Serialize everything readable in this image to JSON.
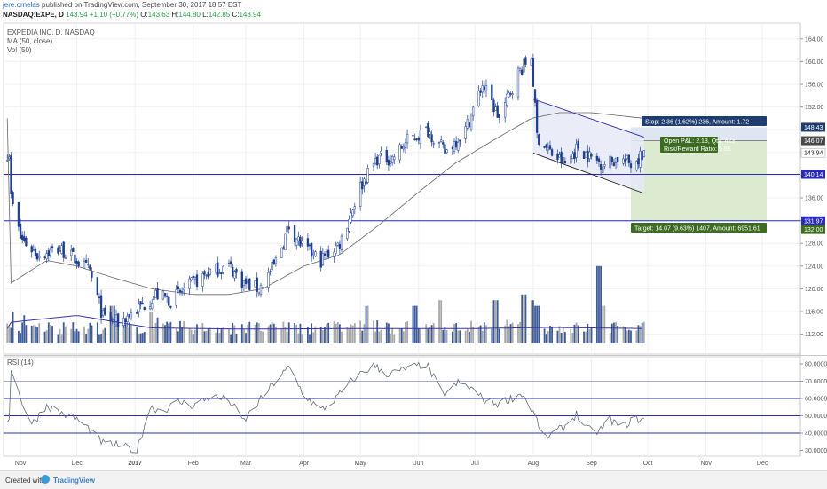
{
  "header": {
    "author": "jere.ornelas",
    "published_text": "published on TradingView.com, September 30, 2017 18:57 EST",
    "symbol": "NASDAQ:EXPE, D",
    "last": "143.94",
    "change": "+1.10 (+0.77%)",
    "o_label": "O:",
    "o_value": "143.63",
    "h_label": "H:",
    "h_value": "144.80",
    "l_label": "L:",
    "l_value": "142.85",
    "c_label": "C:",
    "c_value": "143.94"
  },
  "legend": {
    "title": "EXPEDIA INC, D, NASDAQ",
    "ma": "MA (50, close)",
    "vol": "Vol (50)",
    "rsi": "RSI (14)"
  },
  "footer": {
    "created": "Created with",
    "brand": "TradingView"
  },
  "chart_data": [
    {
      "type": "candlestick",
      "title": "EXPEDIA INC, D, NASDAQ",
      "ylim": [
        110,
        166
      ],
      "y_ticks": [
        "164.00",
        "160.00",
        "156.00",
        "152.00",
        "148.00",
        "144.00",
        "140.00",
        "136.00",
        "132.00",
        "128.00",
        "124.00",
        "120.00",
        "116.00",
        "112.00"
      ],
      "x_ticks": [
        "Nov",
        "Dec",
        "2017",
        "Feb",
        "Mar",
        "Apr",
        "May",
        "Jun",
        "Jul",
        "Aug",
        "Sep",
        "Oct",
        "Nov",
        "Dec"
      ],
      "price_path": [
        [
          "2016-10-27",
          136
        ],
        [
          "2016-11-01",
          129
        ],
        [
          "2016-11-10",
          126
        ],
        [
          "2016-11-22",
          127
        ],
        [
          "2016-12-01",
          125
        ],
        [
          "2016-12-08",
          123
        ],
        [
          "2016-12-15",
          115
        ],
        [
          "2016-12-23",
          114
        ],
        [
          "2017-01-05",
          117
        ],
        [
          "2017-01-12",
          119
        ],
        [
          "2017-01-20",
          118
        ],
        [
          "2017-02-01",
          121
        ],
        [
          "2017-02-10",
          123
        ],
        [
          "2017-02-20",
          124
        ],
        [
          "2017-02-28",
          121
        ],
        [
          "2017-03-08",
          120
        ],
        [
          "2017-03-16",
          124
        ],
        [
          "2017-03-24",
          131
        ],
        [
          "2017-04-01",
          127
        ],
        [
          "2017-04-10",
          125
        ],
        [
          "2017-04-20",
          128
        ],
        [
          "2017-05-01",
          138
        ],
        [
          "2017-05-10",
          143
        ],
        [
          "2017-05-18",
          143
        ],
        [
          "2017-05-26",
          146
        ],
        [
          "2017-06-06",
          148
        ],
        [
          "2017-06-15",
          144
        ],
        [
          "2017-06-26",
          148
        ],
        [
          "2017-07-05",
          156
        ],
        [
          "2017-07-14",
          150
        ],
        [
          "2017-07-24",
          158
        ],
        [
          "2017-07-31",
          161
        ],
        [
          "2017-08-03",
          147
        ],
        [
          "2017-08-10",
          144
        ],
        [
          "2017-08-18",
          142
        ],
        [
          "2017-08-25",
          145
        ],
        [
          "2017-09-01",
          143
        ],
        [
          "2017-09-08",
          142
        ],
        [
          "2017-09-15",
          143
        ],
        [
          "2017-09-22",
          142
        ],
        [
          "2017-09-29",
          143.94
        ]
      ],
      "ma50_path": [
        [
          "2016-10-27",
          121
        ],
        [
          "2016-11-15",
          125
        ],
        [
          "2016-12-01",
          124
        ],
        [
          "2016-12-20",
          122
        ],
        [
          "2017-01-10",
          120
        ],
        [
          "2017-02-01",
          119
        ],
        [
          "2017-02-20",
          119
        ],
        [
          "2017-03-10",
          120
        ],
        [
          "2017-04-01",
          124
        ],
        [
          "2017-04-20",
          126
        ],
        [
          "2017-05-10",
          131
        ],
        [
          "2017-06-01",
          137
        ],
        [
          "2017-06-20",
          142
        ],
        [
          "2017-07-10",
          146
        ],
        [
          "2017-07-31",
          150
        ],
        [
          "2017-08-15",
          151
        ],
        [
          "2017-09-01",
          151
        ],
        [
          "2017-09-29",
          150
        ]
      ],
      "volume_ma": [
        [
          "2016-10-27",
          114.1
        ],
        [
          "2016-12-01",
          115.3
        ],
        [
          "2017-01-10",
          113.1
        ],
        [
          "2017-03-01",
          112.9
        ],
        [
          "2017-05-01",
          113.0
        ],
        [
          "2017-07-01",
          113.0
        ],
        [
          "2017-08-10",
          113.2
        ],
        [
          "2017-09-29",
          113.0
        ]
      ],
      "volume_peaks": [
        [
          "2016-10-29",
          116
        ],
        [
          "2016-12-20",
          117
        ],
        [
          "2017-01-09",
          116
        ],
        [
          "2017-05-05",
          117
        ],
        [
          "2017-05-30",
          117
        ],
        [
          "2017-06-12",
          118
        ],
        [
          "2017-07-12",
          118
        ],
        [
          "2017-07-27",
          119
        ],
        [
          "2017-08-01",
          118
        ],
        [
          "2017-08-03",
          117
        ],
        [
          "2017-09-05",
          124
        ],
        [
          "2017-09-08",
          117
        ]
      ],
      "horizontal_lines": [
        140.14,
        131.97
      ],
      "channel": {
        "upper": [
          [
            "2017-08-01",
            153.4
          ],
          [
            "2017-09-29",
            146.7
          ]
        ],
        "lower": [
          [
            "2017-08-01",
            143.9
          ],
          [
            "2017-09-29",
            136.8
          ]
        ]
      },
      "position": {
        "entry": 146.07,
        "stop": 148.43,
        "target": 132.0,
        "stop_label": "Stop: 2.36 (1.62%) 236, Amount: 1.72",
        "open_label": "Open P&L: 2.13, Qty: 423",
        "rr_label": "Risk/Reward Ratio: 5.96",
        "target_label": "Target: 14.07 (9.63%) 1407, Amount: 6951.61"
      },
      "price_labels": [
        "148.43",
        "146.07",
        "143.94",
        "140.14",
        "131.97",
        "132.00"
      ],
      "colors": {
        "candle_up": "#ffffff",
        "candle_down": "#1e3f8f",
        "outline": "#1e3f8f",
        "volume_up": "#a9a9a9",
        "volume_down": "#3d5b96",
        "ma": "#666666",
        "volume_ma": "#3a2fb0",
        "level_line": "#2b2bb8",
        "stop_zone": "#dde6f2",
        "target_zone": "#dcebd0",
        "stop_box": "#1f3d6e",
        "target_box": "#3d6b22",
        "last_price_box": "#4a4a4a"
      }
    },
    {
      "type": "line",
      "title": "RSI (14)",
      "ylim": [
        25,
        82
      ],
      "y_ticks": [
        "80.0000",
        "70.0000",
        "60.0000",
        "50.0000",
        "40.0000",
        "30.0000"
      ],
      "levels": [
        70,
        60,
        50,
        40
      ],
      "rsi_path": [
        [
          "2016-10-27",
          78
        ],
        [
          "2016-11-01",
          60
        ],
        [
          "2016-11-07",
          45
        ],
        [
          "2016-11-15",
          56
        ],
        [
          "2016-11-22",
          52
        ],
        [
          "2016-12-01",
          48
        ],
        [
          "2016-12-08",
          42
        ],
        [
          "2016-12-15",
          34
        ],
        [
          "2016-12-23",
          33
        ],
        [
          "2017-01-02",
          30
        ],
        [
          "2017-01-09",
          55
        ],
        [
          "2017-01-16",
          53
        ],
        [
          "2017-01-24",
          58
        ],
        [
          "2017-02-01",
          56
        ],
        [
          "2017-02-10",
          61
        ],
        [
          "2017-02-20",
          59
        ],
        [
          "2017-02-28",
          47
        ],
        [
          "2017-03-08",
          58
        ],
        [
          "2017-03-16",
          69
        ],
        [
          "2017-03-24",
          78
        ],
        [
          "2017-04-01",
          62
        ],
        [
          "2017-04-10",
          53
        ],
        [
          "2017-04-18",
          60
        ],
        [
          "2017-04-28",
          72
        ],
        [
          "2017-05-08",
          79
        ],
        [
          "2017-05-16",
          74
        ],
        [
          "2017-05-25",
          77
        ],
        [
          "2017-06-05",
          80
        ],
        [
          "2017-06-14",
          62
        ],
        [
          "2017-06-22",
          69
        ],
        [
          "2017-06-29",
          66
        ],
        [
          "2017-07-06",
          59
        ],
        [
          "2017-07-13",
          57
        ],
        [
          "2017-07-20",
          60
        ],
        [
          "2017-07-26",
          63
        ],
        [
          "2017-08-01",
          52
        ],
        [
          "2017-08-07",
          37
        ],
        [
          "2017-08-12",
          40
        ],
        [
          "2017-08-18",
          44
        ],
        [
          "2017-08-24",
          51
        ],
        [
          "2017-08-30",
          42
        ],
        [
          "2017-09-05",
          41
        ],
        [
          "2017-09-11",
          48
        ],
        [
          "2017-09-17",
          43
        ],
        [
          "2017-09-23",
          48
        ],
        [
          "2017-09-29",
          48
        ]
      ],
      "colors": {
        "line": "#5f6d7a",
        "level_line": "#2b2bb8"
      }
    }
  ]
}
